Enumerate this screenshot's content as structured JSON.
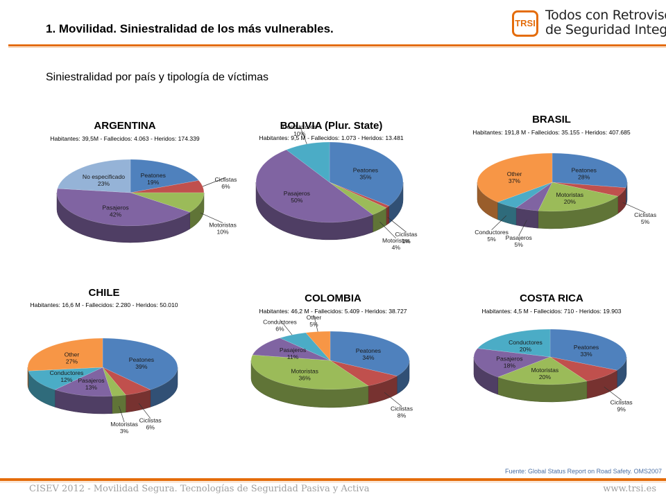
{
  "header": {
    "title": "1.  Movilidad. Siniestralidad de los más vulnerables.",
    "logo_mark": "TRSI",
    "logo_line1": "Todos con Retrovisor",
    "logo_line2": "de Seguridad Integrado"
  },
  "subtitle": "Siniestralidad por país y tipología de víctimas",
  "source": "Fuente: Global Status Report on Road Safety. OMS2007",
  "footer": {
    "left": "CISEV 2012 - Movilidad Segura. Tecnologías de Seguridad Pasiva y Activa",
    "right": "www.trsi.es"
  },
  "colors": {
    "accent": "#e46c0a",
    "Peatones": "#4f81bd",
    "Ciclistas": "#c0504d",
    "Motoristas": "#9bbb59",
    "Pasajeros": "#8064a2",
    "Conductores": "#4bacc6",
    "Other": "#f79646",
    "No especificado": "#95b3d7"
  },
  "chart_data": [
    {
      "type": "pie",
      "title": "ARGENTINA",
      "subtitle": "Habitantes: 39,5M - Fallecidos: 4.063 - Heridos: 174.339",
      "slices": [
        {
          "name": "Peatones",
          "value": 19,
          "label": "19%"
        },
        {
          "name": "Ciclistas",
          "value": 6,
          "label": "6%"
        },
        {
          "name": "Motoristas",
          "value": 10,
          "label": "10%"
        },
        {
          "name": "Pasajeros",
          "value": 42,
          "label": "42%"
        },
        {
          "name": "No especificado",
          "value": 23,
          "label": "23%"
        }
      ]
    },
    {
      "type": "pie",
      "title": "BOLIVIA (Plur. State)",
      "subtitle": "Habitantes: 9,5 M - Fallecidos: 1.073 - Heridos: 13.481",
      "slices": [
        {
          "name": "Peatones",
          "value": 35,
          "label": "35%"
        },
        {
          "name": "Ciclistas",
          "value": 1,
          "label": "1%"
        },
        {
          "name": "Motoristas",
          "value": 4,
          "label": "4%"
        },
        {
          "name": "Pasajeros",
          "value": 50,
          "label": "50%"
        },
        {
          "name": "Conductores",
          "value": 10,
          "label": "10%"
        }
      ]
    },
    {
      "type": "pie",
      "title": "BRASIL",
      "subtitle": "Habitantes: 191,8 M - Fallecidos: 35.155 - Heridos: 407.685",
      "slices": [
        {
          "name": "Peatones",
          "value": 28,
          "label": "28%"
        },
        {
          "name": "Ciclistas",
          "value": 5,
          "label": "5%"
        },
        {
          "name": "Motoristas",
          "value": 20,
          "label": "20%"
        },
        {
          "name": "Pasajeros",
          "value": 5,
          "label": "5%"
        },
        {
          "name": "Conductores",
          "value": 5,
          "label": "5%"
        },
        {
          "name": "Other",
          "value": 37,
          "label": "37%"
        }
      ]
    },
    {
      "type": "pie",
      "title": "CHILE",
      "subtitle": "Habitantes: 16,6 M - Fallecidos: 2.280 - Heridos: 50.010",
      "slices": [
        {
          "name": "Peatones",
          "value": 39,
          "label": "39%"
        },
        {
          "name": "Ciclistas",
          "value": 6,
          "label": "6%"
        },
        {
          "name": "Motoristas",
          "value": 3,
          "label": "3%"
        },
        {
          "name": "Pasajeros",
          "value": 13,
          "label": "13%"
        },
        {
          "name": "Conductores",
          "value": 12,
          "label": "12%"
        },
        {
          "name": "Other",
          "value": 27,
          "label": "27%"
        }
      ]
    },
    {
      "type": "pie",
      "title": "COLOMBIA",
      "subtitle": "Habitantes: 46,2 M - Fallecidos: 5.409 - Heridos: 38.727",
      "slices": [
        {
          "name": "Peatones",
          "value": 34,
          "label": "34%"
        },
        {
          "name": "Ciclistas",
          "value": 8,
          "label": "8%"
        },
        {
          "name": "Motoristas",
          "value": 36,
          "label": "36%"
        },
        {
          "name": "Pasajeros",
          "value": 11,
          "label": "11%"
        },
        {
          "name": "Conductores",
          "value": 6,
          "label": "6%"
        },
        {
          "name": "Other",
          "value": 5,
          "label": "5%"
        }
      ]
    },
    {
      "type": "pie",
      "title": "COSTA RICA",
      "subtitle": "Habitantes: 4,5 M - Fallecidos: 710 - Heridos: 19.903",
      "slices": [
        {
          "name": "Peatones",
          "value": 33,
          "label": "33%"
        },
        {
          "name": "Ciclistas",
          "value": 9,
          "label": "9%"
        },
        {
          "name": "Motoristas",
          "value": 20,
          "label": "20%"
        },
        {
          "name": "Pasajeros",
          "value": 18,
          "label": "18%"
        },
        {
          "name": "Conductores",
          "value": 20,
          "label": "20%"
        }
      ]
    }
  ]
}
